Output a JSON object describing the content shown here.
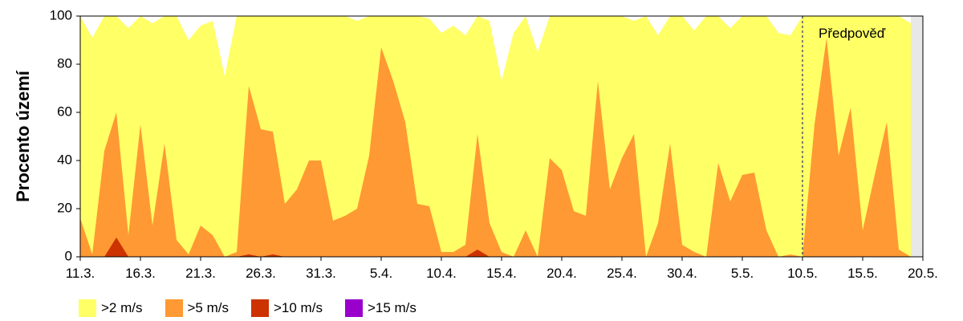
{
  "chart_data": {
    "type": "area",
    "stacked": false,
    "ylabel": "Procento území",
    "ylim": [
      0,
      100
    ],
    "yticks": [
      0,
      20,
      40,
      60,
      80,
      100
    ],
    "xlim": [
      "11.3.",
      "20.5."
    ],
    "xticks": [
      "11.3.",
      "16.3.",
      "21.3.",
      "26.3.",
      "31.3.",
      "5.4.",
      "10.4.",
      "15.4.",
      "20.4.",
      "25.4.",
      "30.4.",
      "5.5.",
      "10.5.",
      "15.5.",
      "20.5."
    ],
    "x": [
      "11.3.",
      "12.3.",
      "13.3.",
      "14.3.",
      "15.3.",
      "16.3.",
      "17.3.",
      "18.3.",
      "19.3.",
      "20.3.",
      "21.3.",
      "22.3.",
      "23.3.",
      "24.3.",
      "25.3.",
      "26.3.",
      "27.3.",
      "28.3.",
      "29.3.",
      "30.3.",
      "31.3.",
      "1.4.",
      "2.4.",
      "3.4.",
      "4.4.",
      "5.4.",
      "6.4.",
      "7.4.",
      "8.4.",
      "9.4.",
      "10.4.",
      "11.4.",
      "12.4.",
      "13.4.",
      "14.4.",
      "15.4.",
      "16.4.",
      "17.4.",
      "18.4.",
      "19.4.",
      "20.4.",
      "21.4.",
      "22.4.",
      "23.4.",
      "24.4.",
      "25.4.",
      "26.4.",
      "27.4.",
      "28.4.",
      "29.4.",
      "30.4.",
      "1.5.",
      "2.5.",
      "3.5.",
      "4.5.",
      "5.5.",
      "6.5.",
      "7.5.",
      "8.5.",
      "9.5.",
      "10.5.",
      "11.5.",
      "12.5.",
      "13.5.",
      "14.5.",
      "15.5.",
      "16.5.",
      "17.5.",
      "18.5.",
      "19.5."
    ],
    "series": [
      {
        "name": ">2 m/s",
        "color": "#FFFF66",
        "values": [
          100,
          91,
          100,
          100,
          95,
          100,
          97,
          100,
          100,
          90,
          96,
          98,
          75,
          100,
          100,
          100,
          100,
          100,
          100,
          100,
          100,
          100,
          100,
          98,
          100,
          100,
          100,
          100,
          100,
          99,
          93,
          96,
          92,
          100,
          98,
          73,
          93,
          100,
          85,
          100,
          100,
          100,
          100,
          100,
          100,
          100,
          98,
          100,
          92,
          100,
          100,
          94,
          100,
          100,
          95,
          100,
          100,
          100,
          93,
          92,
          100,
          100,
          100,
          100,
          100,
          100,
          100,
          100,
          100,
          97
        ]
      },
      {
        "name": ">5 m/s",
        "color": "#FF9933",
        "values": [
          16,
          1,
          44,
          60,
          9,
          55,
          13,
          47,
          7,
          1,
          13,
          9,
          0,
          2,
          71,
          53,
          52,
          22,
          28,
          40,
          40,
          15,
          17,
          20,
          42,
          87,
          73,
          56,
          22,
          21,
          2,
          2,
          5,
          51,
          14,
          2,
          0,
          11,
          0,
          41,
          36,
          19,
          17,
          73,
          28,
          41,
          51,
          0,
          14,
          47,
          5,
          2,
          0,
          39,
          23,
          34,
          35,
          11,
          0,
          1,
          0,
          55,
          91,
          42,
          62,
          11,
          34,
          56,
          3,
          0
        ]
      },
      {
        "name": ">10 m/s",
        "color": "#CC3300",
        "values": [
          0,
          0,
          0,
          8,
          0,
          0,
          0,
          0,
          0,
          0,
          0,
          0,
          0,
          0,
          1,
          0,
          1,
          0,
          0,
          0,
          0,
          0,
          0,
          0,
          0,
          0,
          0,
          0,
          0,
          0,
          0,
          0,
          0,
          3,
          0,
          0,
          0,
          0,
          0,
          0,
          0,
          0,
          0,
          0,
          0,
          0,
          0,
          0,
          0,
          0,
          0,
          0,
          0,
          0,
          0,
          0,
          0,
          0,
          0,
          0,
          0,
          0,
          0,
          0,
          0,
          0,
          0,
          0,
          0,
          0
        ]
      },
      {
        "name": ">15 m/s",
        "color": "#9900CC",
        "values": [
          0,
          0,
          0,
          0,
          0,
          0,
          0,
          0,
          0,
          0,
          0,
          0,
          0,
          0,
          0,
          0,
          0,
          0,
          0,
          0,
          0,
          0,
          0,
          0,
          0,
          0,
          0,
          0,
          0,
          0,
          0,
          0,
          0,
          0,
          0,
          0,
          0,
          0,
          0,
          0,
          0,
          0,
          0,
          0,
          0,
          0,
          0,
          0,
          0,
          0,
          0,
          0,
          0,
          0,
          0,
          0,
          0,
          0,
          0,
          0,
          0,
          0,
          0,
          0,
          0,
          0,
          0,
          0,
          0,
          0
        ]
      }
    ],
    "forecast_start": "10.5.",
    "forecast_label": "Předpověď",
    "grid": false,
    "legend_position": "bottom-left"
  }
}
